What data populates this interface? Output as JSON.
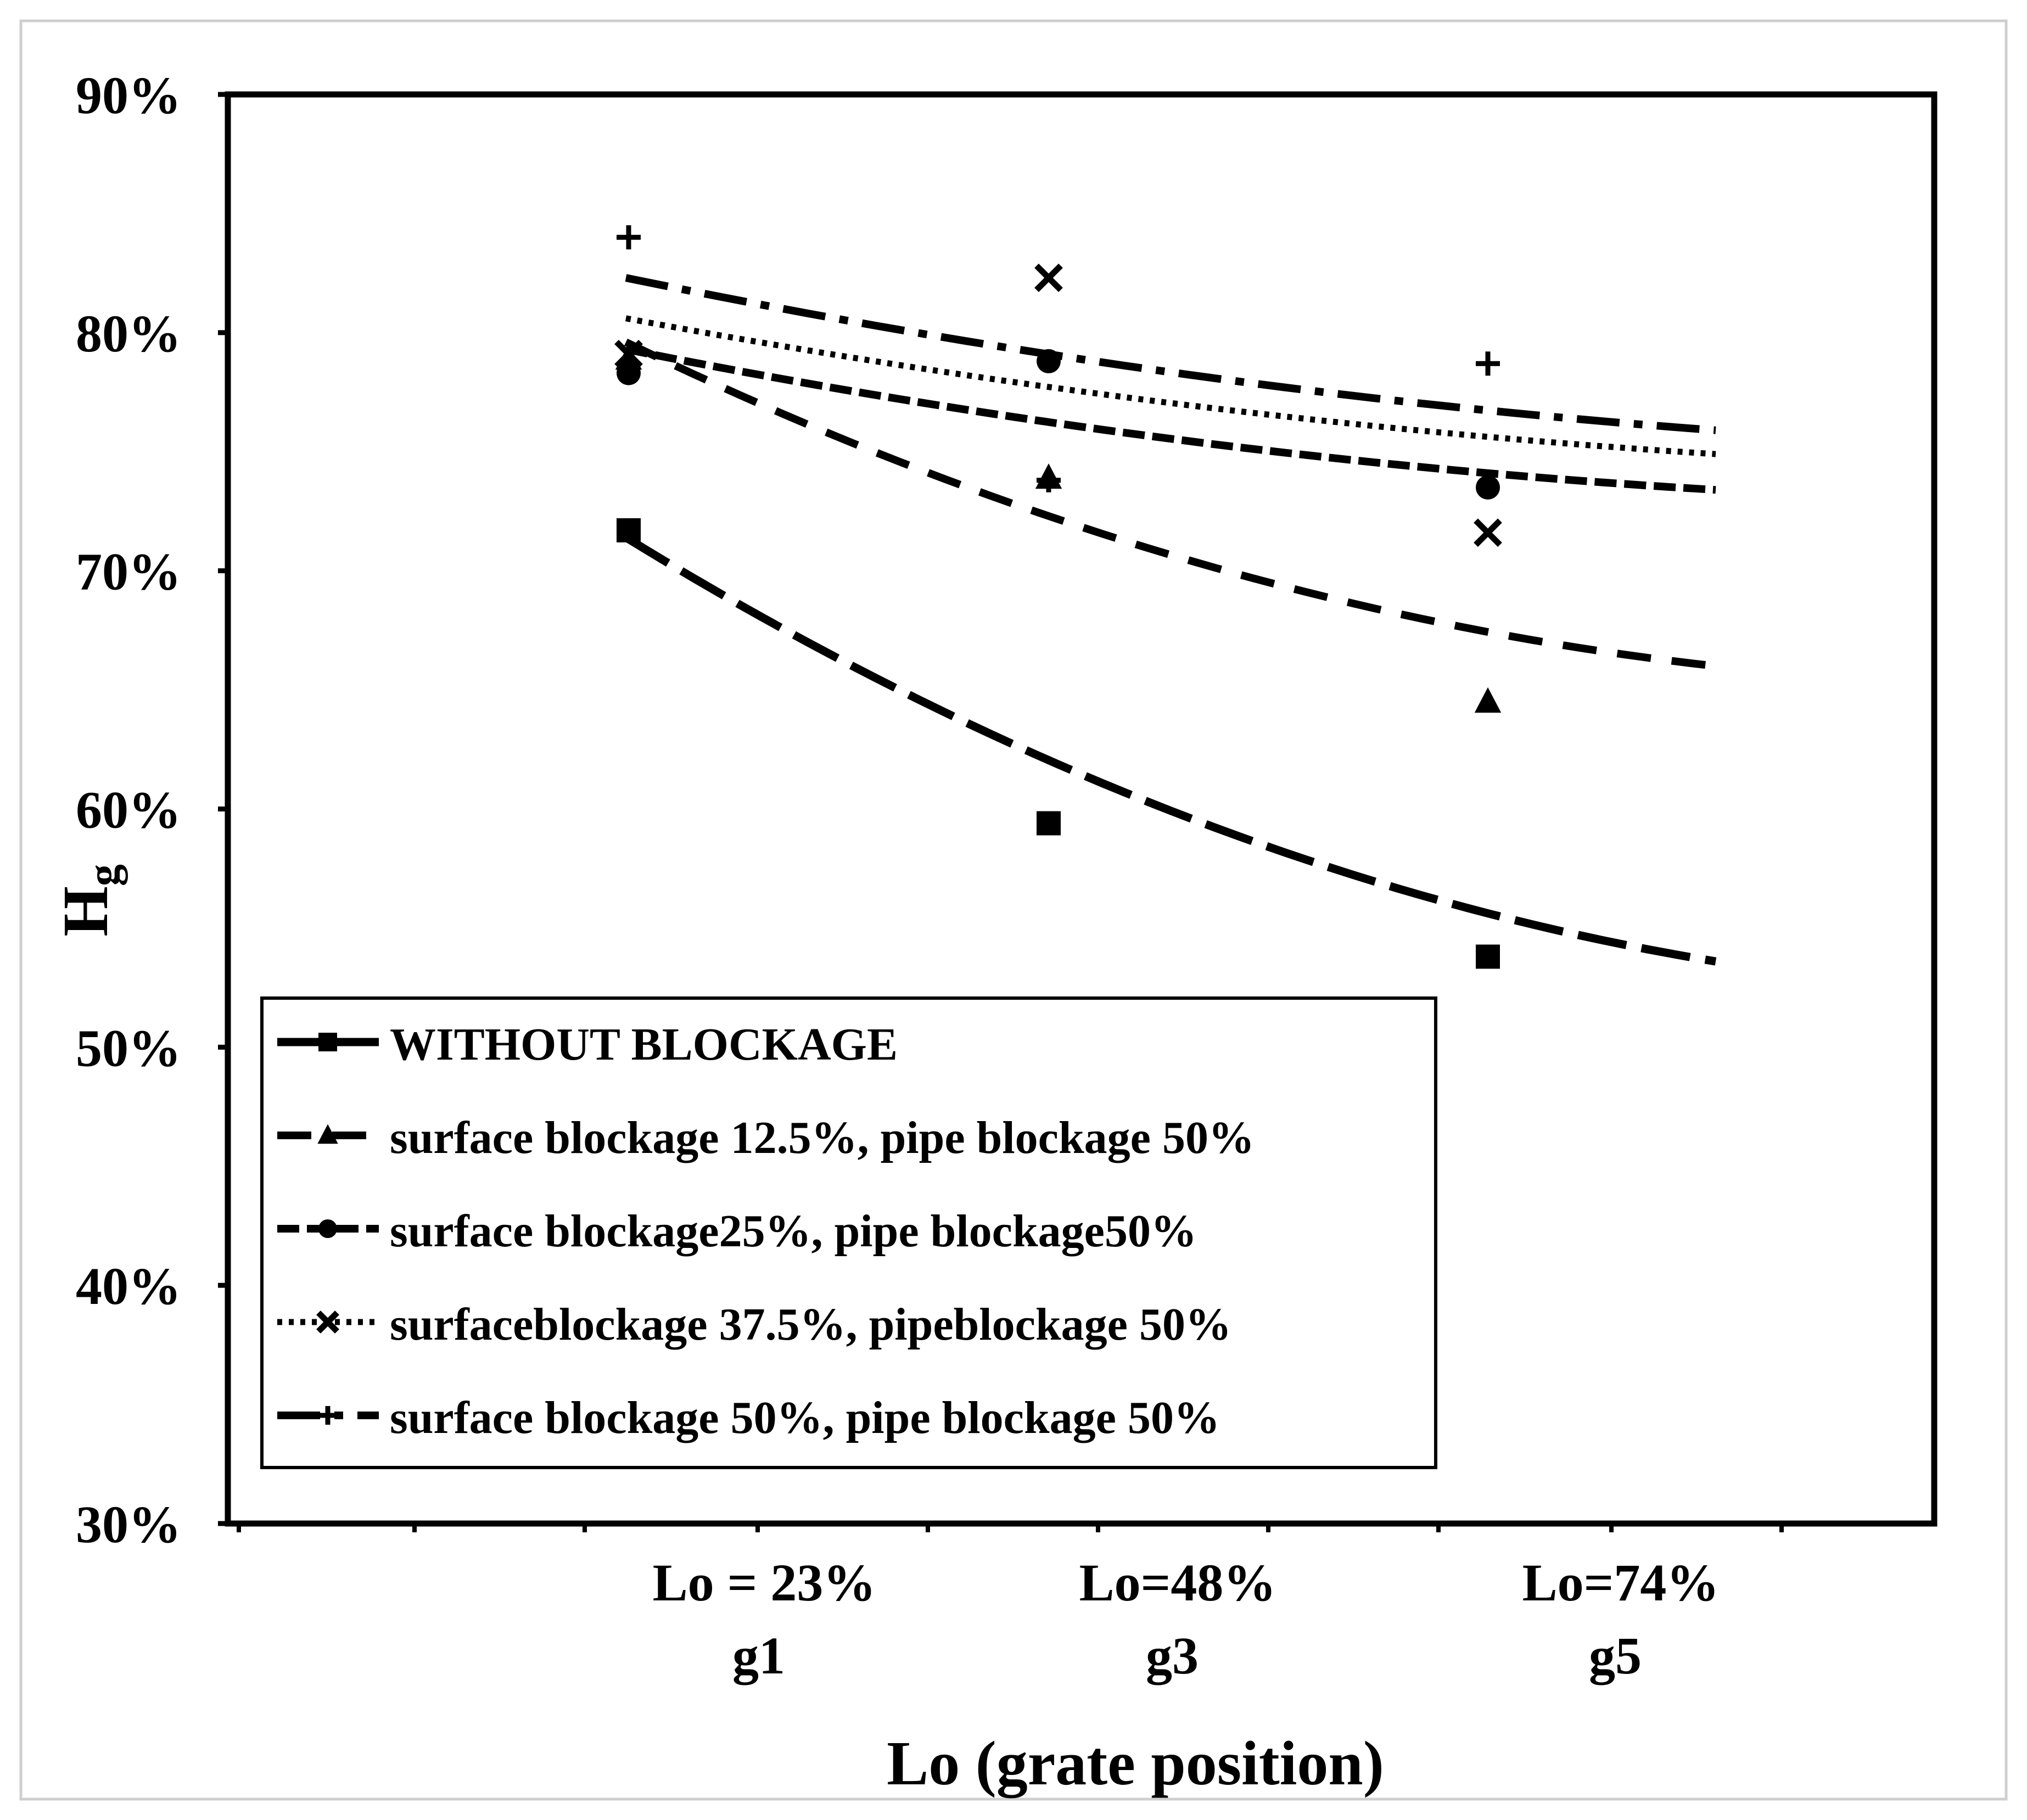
{
  "chart_data": {
    "type": "scatter",
    "title": "",
    "xlabel": "Lo (grate position)",
    "ylabel": "H",
    "ylabel_subscript": "g",
    "ylim": [
      0.3,
      0.9
    ],
    "yticks": [
      "30%",
      "40%",
      "50%",
      "60%",
      "70%",
      "80%",
      "90%"
    ],
    "ytick_values": [
      0.3,
      0.4,
      0.5,
      0.6,
      0.7,
      0.8,
      0.9
    ],
    "categories": [
      {
        "line1": "Lo = 23%",
        "line2": "g1"
      },
      {
        "line1": "Lo=48%",
        "line2": "g3"
      },
      {
        "line1": "Lo=74%",
        "line2": "g5"
      }
    ],
    "x": [
      23,
      48,
      74
    ],
    "grid": false,
    "legend_position": "lower-left",
    "series": [
      {
        "name": "WITHOUT BLOCKAGE",
        "marker": "square",
        "values": [
          0.717,
          0.594,
          0.538
        ],
        "trend": [
          0.714,
          0.601,
          0.536
        ]
      },
      {
        "name": "surface blockage 12.5%, pipe blockage 50%",
        "marker": "triangle",
        "values": [
          0.789,
          0.739,
          0.645
        ],
        "trend": [
          0.796,
          0.708,
          0.66
        ]
      },
      {
        "name": "surface blockage25%, pipe blockage50%",
        "marker": "circle",
        "values": [
          0.783,
          0.788,
          0.735
        ],
        "trend": [
          0.793,
          0.756,
          0.734
        ]
      },
      {
        "name": "surfaceblockage 37.5%, pipeblockage 50%",
        "marker": "x",
        "values": [
          0.791,
          0.823,
          0.716
        ],
        "trend": [
          0.806,
          0.771,
          0.749
        ]
      },
      {
        "name": "surface blockage 50%, pipe blockage 50%",
        "marker": "plus",
        "values": [
          0.84,
          0.738,
          0.787
        ],
        "trend": [
          0.823,
          0.784,
          0.759
        ]
      }
    ]
  }
}
